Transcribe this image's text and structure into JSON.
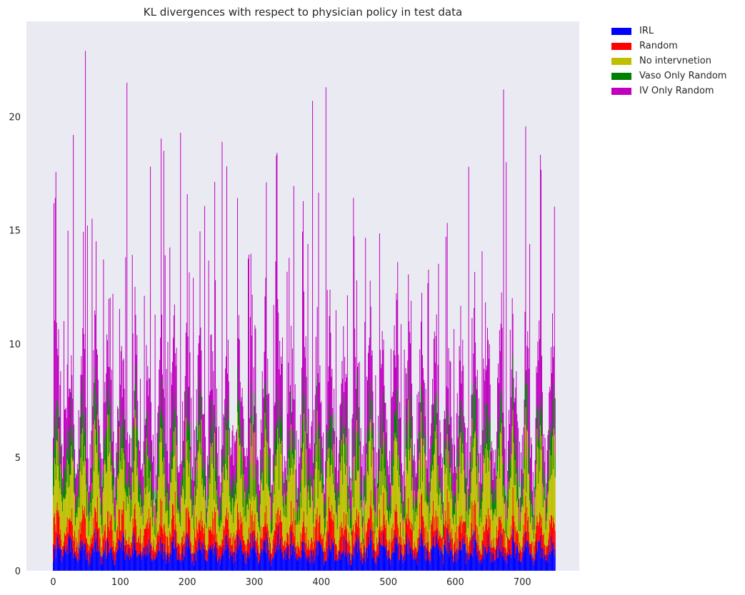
{
  "chart_data": {
    "type": "bar",
    "stacked": true,
    "title": "KL divergences with respect to physician policy in test data",
    "xlabel": "",
    "ylabel": "",
    "xlim": [
      -40,
      785
    ],
    "ylim": [
      0,
      24.2
    ],
    "xticks": [
      0,
      100,
      200,
      300,
      400,
      500,
      600,
      700
    ],
    "yticks": [
      0,
      5,
      10,
      15,
      20
    ],
    "grid": false,
    "background": "#eaeaf2",
    "legend_position": "outside-top-right",
    "n_bars": 750,
    "series": [
      {
        "name": "IRL",
        "color": "#0000ff"
      },
      {
        "name": "Random",
        "color": "#ff0000"
      },
      {
        "name": "No intervnetion",
        "color": "#bfbf00"
      },
      {
        "name": "Vaso Only Random",
        "color": "#008000"
      },
      {
        "name": "IV Only Random",
        "color": "#bf00bf"
      }
    ],
    "approx_typical_values": {
      "IRL": 1.0,
      "Random": 1.0,
      "No intervnetion": 2.5,
      "Vaso Only Random": 1.3,
      "IV Only Random": 2.5
    },
    "notable_peaks": [
      {
        "x": 48,
        "total": 22.9
      },
      {
        "x": 110,
        "total": 21.5
      },
      {
        "x": 407,
        "total": 21.3
      },
      {
        "x": 672,
        "total": 21.2
      },
      {
        "x": 387,
        "total": 20.7
      },
      {
        "x": 190,
        "total": 19.3
      },
      {
        "x": 30,
        "total": 19.2
      },
      {
        "x": 252,
        "total": 18.9
      },
      {
        "x": 165,
        "total": 18.5
      },
      {
        "x": 676,
        "total": 18.0
      },
      {
        "x": 145,
        "total": 17.8
      },
      {
        "x": 620,
        "total": 17.8
      }
    ]
  }
}
